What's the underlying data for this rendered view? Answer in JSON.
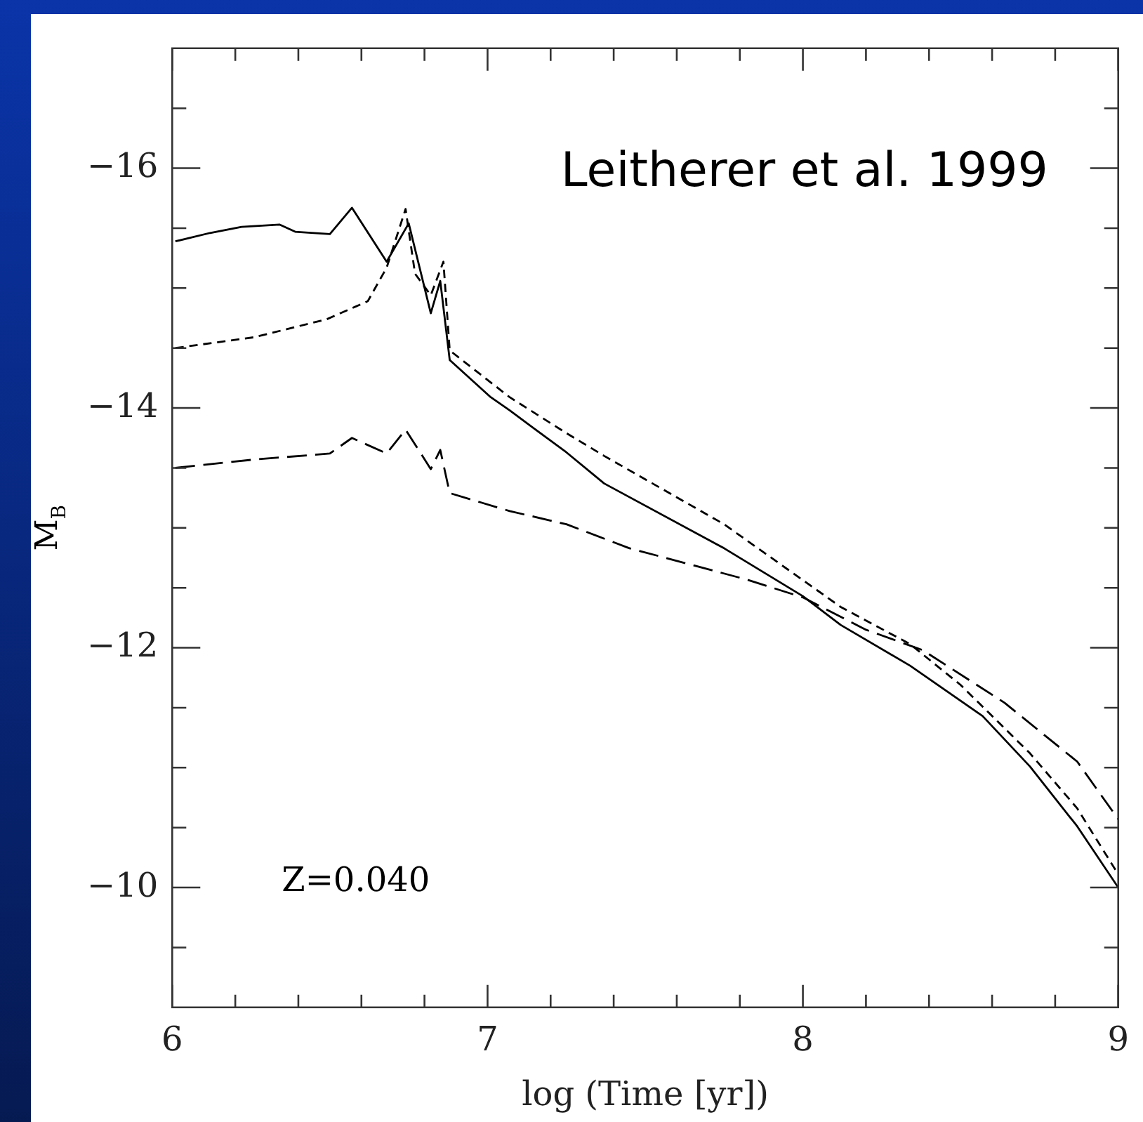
{
  "chart_data": {
    "type": "line",
    "xlabel": "log (Time [yr])",
    "ylabel": "M$_{B}$",
    "annotations": [
      "Leitherer et al. 1999",
      "Z=0.040"
    ],
    "xlim": [
      6,
      9
    ],
    "ylim": [
      -9,
      -17
    ],
    "xticks": [
      6,
      {
        "value": 6.2,
        "label": null
      },
      {
        "value": 6.4,
        "label": null
      },
      {
        "value": 6.6,
        "label": null
      },
      {
        "value": 6.8,
        "label": null
      },
      7,
      {
        "value": 7.2,
        "label": null
      },
      {
        "value": 7.4,
        "label": null
      },
      {
        "value": 7.6,
        "label": null
      },
      {
        "value": 7.8,
        "label": null
      },
      8,
      {
        "value": 8.2,
        "label": null
      },
      {
        "value": 8.4,
        "label": null
      },
      {
        "value": 8.6,
        "label": null
      },
      {
        "value": 8.8,
        "label": null
      },
      9
    ],
    "yticks": [
      {
        "value": -9.5,
        "label": null
      },
      -10,
      {
        "value": -10.5,
        "label": null
      },
      {
        "value": -11,
        "label": null
      },
      {
        "value": -11.5,
        "label": null
      },
      -12,
      {
        "value": -12.5,
        "label": null
      },
      {
        "value": -13,
        "label": null
      },
      {
        "value": -13.5,
        "label": null
      },
      -14,
      {
        "value": -14.5,
        "label": null
      },
      {
        "value": -15,
        "label": null
      },
      {
        "value": -15.5,
        "label": null
      },
      -16,
      {
        "value": -16.5,
        "label": null
      }
    ],
    "grid": false,
    "legend": false,
    "marker": "none",
    "series": [
      {
        "color": "#000000",
        "line_style": "solid",
        "x": [
          6.01,
          6.12,
          6.22,
          6.34,
          6.39,
          6.5,
          6.57,
          6.68,
          6.75,
          6.82,
          6.85,
          6.88,
          7.01,
          7.07,
          7.25,
          7.37,
          7.75,
          8.0,
          8.12,
          8.34,
          8.57,
          8.72,
          8.87,
          9.0
        ],
        "values": [
          -15.39,
          -15.46,
          -15.51,
          -15.53,
          -15.47,
          -15.45,
          -15.67,
          -15.22,
          -15.54,
          -14.79,
          -15.06,
          -14.4,
          -14.09,
          -13.98,
          -13.63,
          -13.37,
          -12.83,
          -12.43,
          -12.19,
          -11.85,
          -11.43,
          -11.01,
          -10.51,
          -10.0
        ]
      },
      {
        "color": "#000000",
        "line_style": "dashed",
        "x": [
          6.01,
          6.26,
          6.49,
          6.62,
          6.68,
          6.74,
          6.77,
          6.82,
          6.86,
          6.88,
          7.07,
          7.25,
          7.37,
          7.75,
          8.12,
          8.34,
          8.5,
          8.72,
          8.87,
          9.0
        ],
        "values": [
          -14.5,
          -14.59,
          -14.74,
          -14.89,
          -15.17,
          -15.66,
          -15.12,
          -14.94,
          -15.22,
          -14.48,
          -14.09,
          -13.79,
          -13.6,
          -13.03,
          -12.34,
          -12.03,
          -11.69,
          -11.12,
          -10.66,
          -10.11
        ]
      },
      {
        "color": "#000000",
        "line_style": "dashed",
        "x": [
          6.01,
          6.26,
          6.5,
          6.57,
          6.68,
          6.74,
          6.82,
          6.85,
          6.88,
          7.07,
          7.25,
          7.45,
          7.82,
          8.0,
          8.2,
          8.38,
          8.64,
          8.87,
          9.0
        ],
        "values": [
          -13.5,
          -13.57,
          -13.62,
          -13.75,
          -13.62,
          -13.82,
          -13.49,
          -13.65,
          -13.29,
          -13.14,
          -13.03,
          -12.83,
          -12.57,
          -12.42,
          -12.15,
          -11.98,
          -11.54,
          -11.05,
          -10.57
        ]
      }
    ]
  }
}
